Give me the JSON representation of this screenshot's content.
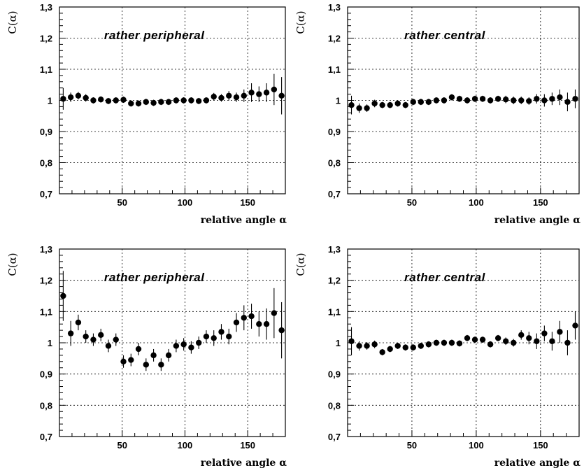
{
  "chart_data": [
    {
      "type": "scatter",
      "panel": "top-left",
      "title": "rather peripheral",
      "xlabel": "relative angle α",
      "ylabel": "C(α)",
      "xlim": [
        0,
        180
      ],
      "ylim": [
        0.7,
        1.3
      ],
      "xticks": [
        "50",
        "100",
        "150"
      ],
      "yticks": [
        "0,7",
        "0,8",
        "0,9",
        "1",
        "1,1",
        "1,2",
        "1,3"
      ],
      "grid": true,
      "x": [
        3,
        9,
        15,
        21,
        27,
        33,
        39,
        45,
        51,
        57,
        63,
        69,
        75,
        81,
        87,
        93,
        99,
        105,
        111,
        117,
        123,
        129,
        135,
        141,
        147,
        153,
        159,
        165,
        171,
        177
      ],
      "y": [
        1.005,
        1.01,
        1.015,
        1.008,
        1.0,
        1.003,
        0.998,
        1.0,
        1.002,
        0.99,
        0.99,
        0.995,
        0.992,
        0.995,
        0.995,
        1.0,
        1.0,
        1.0,
        0.998,
        1.0,
        1.012,
        1.008,
        1.015,
        1.01,
        1.015,
        1.025,
        1.02,
        1.025,
        1.035,
        1.015
      ],
      "err": [
        0.035,
        0.015,
        0.012,
        0.012,
        0.01,
        0.01,
        0.01,
        0.01,
        0.01,
        0.01,
        0.01,
        0.01,
        0.01,
        0.01,
        0.01,
        0.01,
        0.01,
        0.01,
        0.01,
        0.01,
        0.012,
        0.012,
        0.015,
        0.015,
        0.02,
        0.03,
        0.025,
        0.03,
        0.05,
        0.06
      ]
    },
    {
      "type": "scatter",
      "panel": "top-right",
      "title": "rather central",
      "xlabel": "relative angle α",
      "ylabel": "C(α)",
      "xlim": [
        0,
        180
      ],
      "ylim": [
        0.7,
        1.3
      ],
      "xticks": [
        "50",
        "100",
        "150"
      ],
      "yticks": [
        "0,7",
        "0,8",
        "0,9",
        "1",
        "1,1",
        "1,2",
        "1,3"
      ],
      "grid": true,
      "x": [
        3,
        9,
        15,
        21,
        27,
        33,
        39,
        45,
        51,
        57,
        63,
        69,
        75,
        81,
        87,
        93,
        99,
        105,
        111,
        117,
        123,
        129,
        135,
        141,
        147,
        153,
        159,
        165,
        171,
        177
      ],
      "y": [
        0.985,
        0.975,
        0.975,
        0.99,
        0.985,
        0.985,
        0.99,
        0.985,
        0.995,
        0.995,
        0.995,
        1.0,
        1.0,
        1.01,
        1.005,
        1.0,
        1.005,
        1.005,
        1.0,
        1.005,
        1.003,
        1.0,
        1.0,
        0.998,
        1.005,
        1.0,
        1.005,
        1.01,
        0.995,
        1.005
      ],
      "err": [
        0.03,
        0.015,
        0.012,
        0.012,
        0.01,
        0.01,
        0.01,
        0.01,
        0.01,
        0.01,
        0.01,
        0.01,
        0.01,
        0.01,
        0.01,
        0.01,
        0.01,
        0.01,
        0.01,
        0.01,
        0.012,
        0.012,
        0.012,
        0.012,
        0.015,
        0.02,
        0.02,
        0.025,
        0.03,
        0.03
      ]
    },
    {
      "type": "scatter",
      "panel": "bottom-left",
      "title": "rather peripheral",
      "xlabel": "relative angle α",
      "ylabel": "C(α)",
      "xlim": [
        0,
        180
      ],
      "ylim": [
        0.7,
        1.3
      ],
      "xticks": [
        "50",
        "100",
        "150"
      ],
      "yticks": [
        "0,7",
        "0,8",
        "0,9",
        "1",
        "1,1",
        "1,2",
        "1,3"
      ],
      "grid": true,
      "x": [
        3,
        9,
        15,
        21,
        27,
        33,
        39,
        45,
        51,
        57,
        63,
        69,
        75,
        81,
        87,
        93,
        99,
        105,
        111,
        117,
        123,
        129,
        135,
        141,
        147,
        153,
        159,
        165,
        171,
        177
      ],
      "y": [
        1.15,
        1.03,
        1.065,
        1.02,
        1.01,
        1.025,
        0.99,
        1.01,
        0.94,
        0.945,
        0.98,
        0.93,
        0.96,
        0.93,
        0.96,
        0.99,
        0.995,
        0.985,
        1.0,
        1.02,
        1.015,
        1.035,
        1.02,
        1.065,
        1.08,
        1.085,
        1.06,
        1.06,
        1.095,
        1.04
      ],
      "err": [
        0.08,
        0.04,
        0.025,
        0.02,
        0.02,
        0.02,
        0.02,
        0.02,
        0.02,
        0.02,
        0.02,
        0.02,
        0.02,
        0.02,
        0.02,
        0.02,
        0.02,
        0.02,
        0.02,
        0.02,
        0.025,
        0.025,
        0.025,
        0.03,
        0.04,
        0.04,
        0.04,
        0.05,
        0.08,
        0.09
      ]
    },
    {
      "type": "scatter",
      "panel": "bottom-right",
      "title": "rather central",
      "xlabel": "relative angle α",
      "ylabel": "C(α)",
      "xlim": [
        0,
        180
      ],
      "ylim": [
        0.7,
        1.3
      ],
      "xticks": [
        "50",
        "100",
        "150"
      ],
      "yticks": [
        "0,7",
        "0,8",
        "0,9",
        "1",
        "1,1",
        "1,2",
        "1,3"
      ],
      "grid": true,
      "x": [
        3,
        9,
        15,
        21,
        27,
        33,
        39,
        45,
        51,
        57,
        63,
        69,
        75,
        81,
        87,
        93,
        99,
        105,
        111,
        117,
        123,
        129,
        135,
        141,
        147,
        153,
        159,
        165,
        171,
        177
      ],
      "y": [
        1.005,
        0.99,
        0.99,
        0.995,
        0.97,
        0.98,
        0.99,
        0.985,
        0.985,
        0.99,
        0.995,
        1.0,
        1.0,
        1.0,
        0.998,
        1.015,
        1.01,
        1.01,
        0.995,
        1.015,
        1.005,
        1.0,
        1.025,
        1.015,
        1.005,
        1.03,
        1.005,
        1.035,
        1.0,
        1.055
      ],
      "err": [
        0.045,
        0.015,
        0.012,
        0.012,
        0.01,
        0.01,
        0.01,
        0.01,
        0.01,
        0.01,
        0.01,
        0.01,
        0.01,
        0.01,
        0.01,
        0.01,
        0.01,
        0.01,
        0.01,
        0.01,
        0.012,
        0.012,
        0.015,
        0.02,
        0.025,
        0.025,
        0.03,
        0.035,
        0.04,
        0.045
      ]
    }
  ]
}
